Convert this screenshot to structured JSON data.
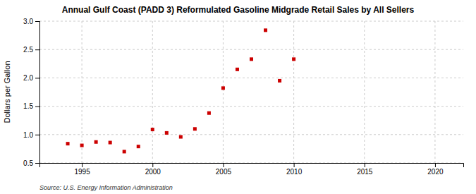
{
  "chart_data": {
    "type": "scatter",
    "title": "Annual Gulf Coast (PADD 3) Reformulated Gasoline Midgrade Retail Sales by All Sellers",
    "ylabel": "Dollars per Gallon",
    "annotations": [
      "Source: U.S. Energy Information Administration"
    ],
    "x": [
      1994,
      1995,
      1996,
      1997,
      1998,
      1999,
      2000,
      2001,
      2002,
      2003,
      2004,
      2005,
      2006,
      2007,
      2008,
      2009,
      2010
    ],
    "values": [
      0.84,
      0.81,
      0.87,
      0.86,
      0.7,
      0.79,
      1.09,
      1.03,
      0.96,
      1.1,
      1.38,
      1.82,
      2.15,
      2.33,
      2.84,
      1.95,
      2.33
    ],
    "color": "#cc0000",
    "marker": "square",
    "xlim": [
      1992,
      2022
    ],
    "ylim": [
      0.5,
      3.0
    ],
    "xticks": [
      1995,
      2000,
      2005,
      2010,
      2015,
      2020
    ],
    "yticks": [
      0.5,
      {
        "value": 1.0,
        "label": "1.0"
      },
      1.5,
      {
        "value": 2.0,
        "label": "2.0"
      },
      2.5,
      {
        "value": 3.0,
        "label": "3.0"
      }
    ],
    "grid": true
  }
}
